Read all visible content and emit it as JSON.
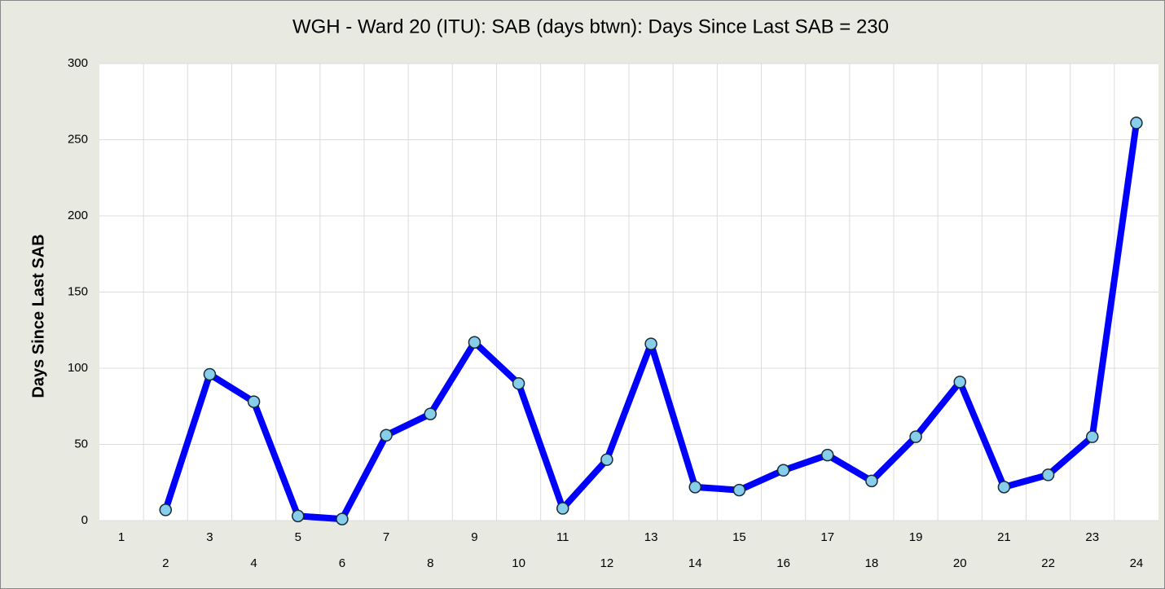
{
  "chart_data": {
    "type": "line",
    "title": "WGH - Ward 20 (ITU):  SAB (days btwn):   Days Since Last SAB = 230",
    "y_label": "Days Since Last SAB",
    "categories": [
      "1",
      "2",
      "3",
      "4",
      "5",
      "6",
      "7",
      "8",
      "9",
      "10",
      "11",
      "12",
      "13",
      "14",
      "15",
      "16",
      "17",
      "18",
      "19",
      "20",
      "21",
      "22",
      "23",
      "24"
    ],
    "series": [
      {
        "name": "Days Since Last SAB",
        "color": "#0000ff",
        "marker_color": "#87ceeb",
        "values": [
          null,
          7,
          96,
          78,
          3,
          1,
          56,
          70,
          117,
          90,
          8,
          40,
          116,
          22,
          20,
          33,
          43,
          26,
          55,
          91,
          22,
          30,
          55,
          261
        ]
      }
    ],
    "ylim": [
      0,
      300
    ],
    "yticks": [
      0,
      50,
      100,
      150,
      200,
      250,
      300
    ],
    "grid": true
  }
}
